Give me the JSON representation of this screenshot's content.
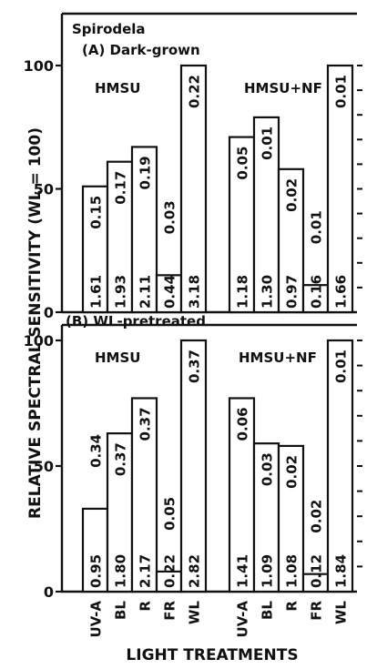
{
  "figure": {
    "ylabel": "RELATIVE SPECTRAL SENSITIVITY (WL = 100)",
    "xlabel": "LIGHT TREATMENTS",
    "species": "Spirodela"
  },
  "chart_data": [
    {
      "type": "bar",
      "title": "(A) Dark-grown",
      "ylim": [
        0,
        110
      ],
      "yticks": [
        0,
        50,
        100
      ],
      "groups": [
        {
          "name": "HMSU",
          "categories": [
            "UV-A",
            "BL",
            "R",
            "FR",
            "WL"
          ],
          "values": [
            51,
            61,
            67,
            15,
            100
          ],
          "upper_labels": [
            "0.15",
            "0.17",
            "0.19",
            "0.03",
            "0.22"
          ],
          "lower_labels": [
            "1.61",
            "1.93",
            "2.11",
            "0.44",
            "3.18"
          ]
        },
        {
          "name": "HMSU+NF",
          "categories": [
            "UV-A",
            "BL",
            "R",
            "FR",
            "WL"
          ],
          "values": [
            71,
            79,
            58,
            11,
            100
          ],
          "upper_labels": [
            "0.05",
            "0.01",
            "0.02",
            "0.01",
            "0.01"
          ],
          "lower_labels": [
            "1.18",
            "1.30",
            "0.97",
            "0.16",
            "1.66"
          ]
        }
      ]
    },
    {
      "type": "bar",
      "title": "(B) WL-pretreated",
      "ylim": [
        0,
        110
      ],
      "yticks": [
        0,
        50,
        100
      ],
      "groups": [
        {
          "name": "HMSU",
          "categories": [
            "UV-A",
            "BL",
            "R",
            "FR",
            "WL"
          ],
          "values": [
            33,
            63,
            77,
            8,
            100
          ],
          "upper_labels": [
            "0.34",
            "0.37",
            "0.37",
            "0.05",
            "0.37"
          ],
          "lower_labels": [
            "0.95",
            "1.80",
            "2.17",
            "0.22",
            "2.82"
          ]
        },
        {
          "name": "HMSU+NF",
          "categories": [
            "UV-A",
            "BL",
            "R",
            "FR",
            "WL"
          ],
          "values": [
            77,
            59,
            58,
            7,
            100
          ],
          "upper_labels": [
            "0.06",
            "0.03",
            "0.02",
            "0.02",
            "0.01"
          ],
          "lower_labels": [
            "1.41",
            "1.09",
            "1.08",
            "0.12",
            "1.84"
          ]
        }
      ]
    }
  ]
}
